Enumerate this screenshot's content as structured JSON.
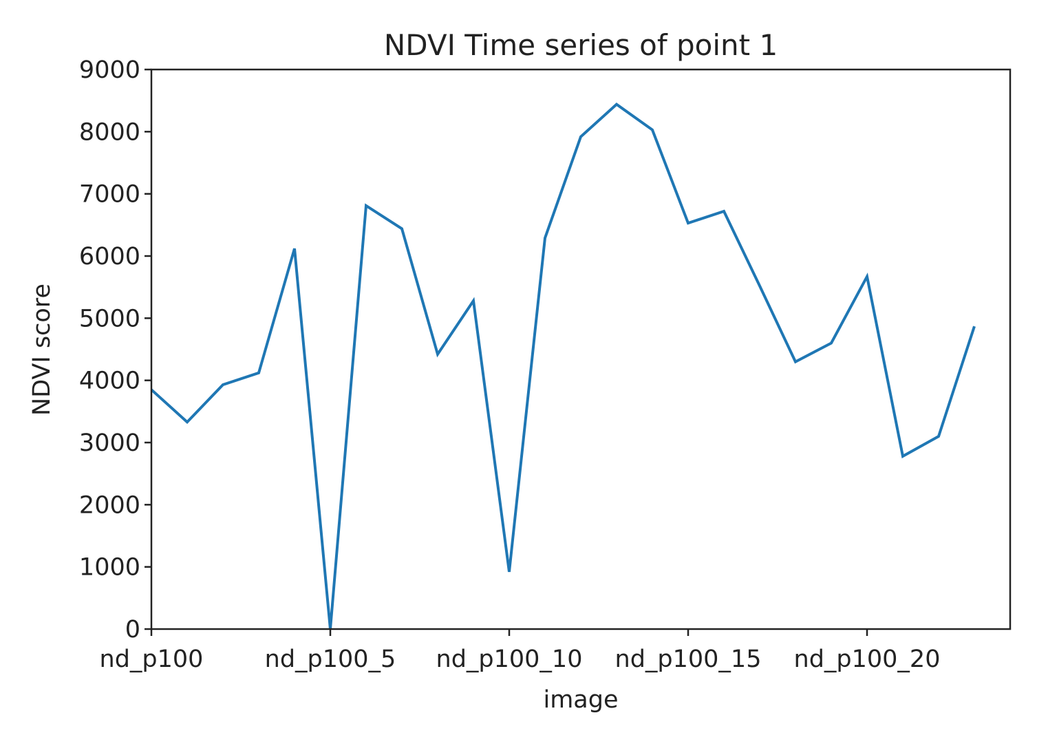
{
  "chart_data": {
    "type": "line",
    "title": "NDVI Time series of point 1",
    "xlabel": "image",
    "ylabel": "NDVI score",
    "x": [
      0,
      1,
      2,
      3,
      4,
      5,
      6,
      7,
      8,
      9,
      10,
      11,
      12,
      13,
      14,
      15,
      16,
      17,
      18,
      19,
      20,
      21,
      22,
      23
    ],
    "x_tick_positions": [
      0,
      5,
      10,
      15,
      20
    ],
    "x_tick_labels": [
      "nd_p100",
      "nd_p100_5",
      "nd_p100_10",
      "nd_p100_15",
      "nd_p100_20"
    ],
    "series": [
      {
        "values": [
          3850,
          3330,
          3930,
          4120,
          6120,
          0,
          6810,
          6440,
          4420,
          5280,
          920,
          6290,
          7920,
          8440,
          8030,
          6530,
          6720,
          5520,
          4300,
          4600,
          5670,
          2780,
          3100,
          4870
        ],
        "color": "#1f77b4"
      }
    ],
    "xlim": [
      0,
      24
    ],
    "ylim": [
      0,
      9000
    ],
    "y_ticks": [
      0,
      1000,
      2000,
      3000,
      4000,
      5000,
      6000,
      7000,
      8000,
      9000
    ],
    "grid": false,
    "legend": false
  }
}
